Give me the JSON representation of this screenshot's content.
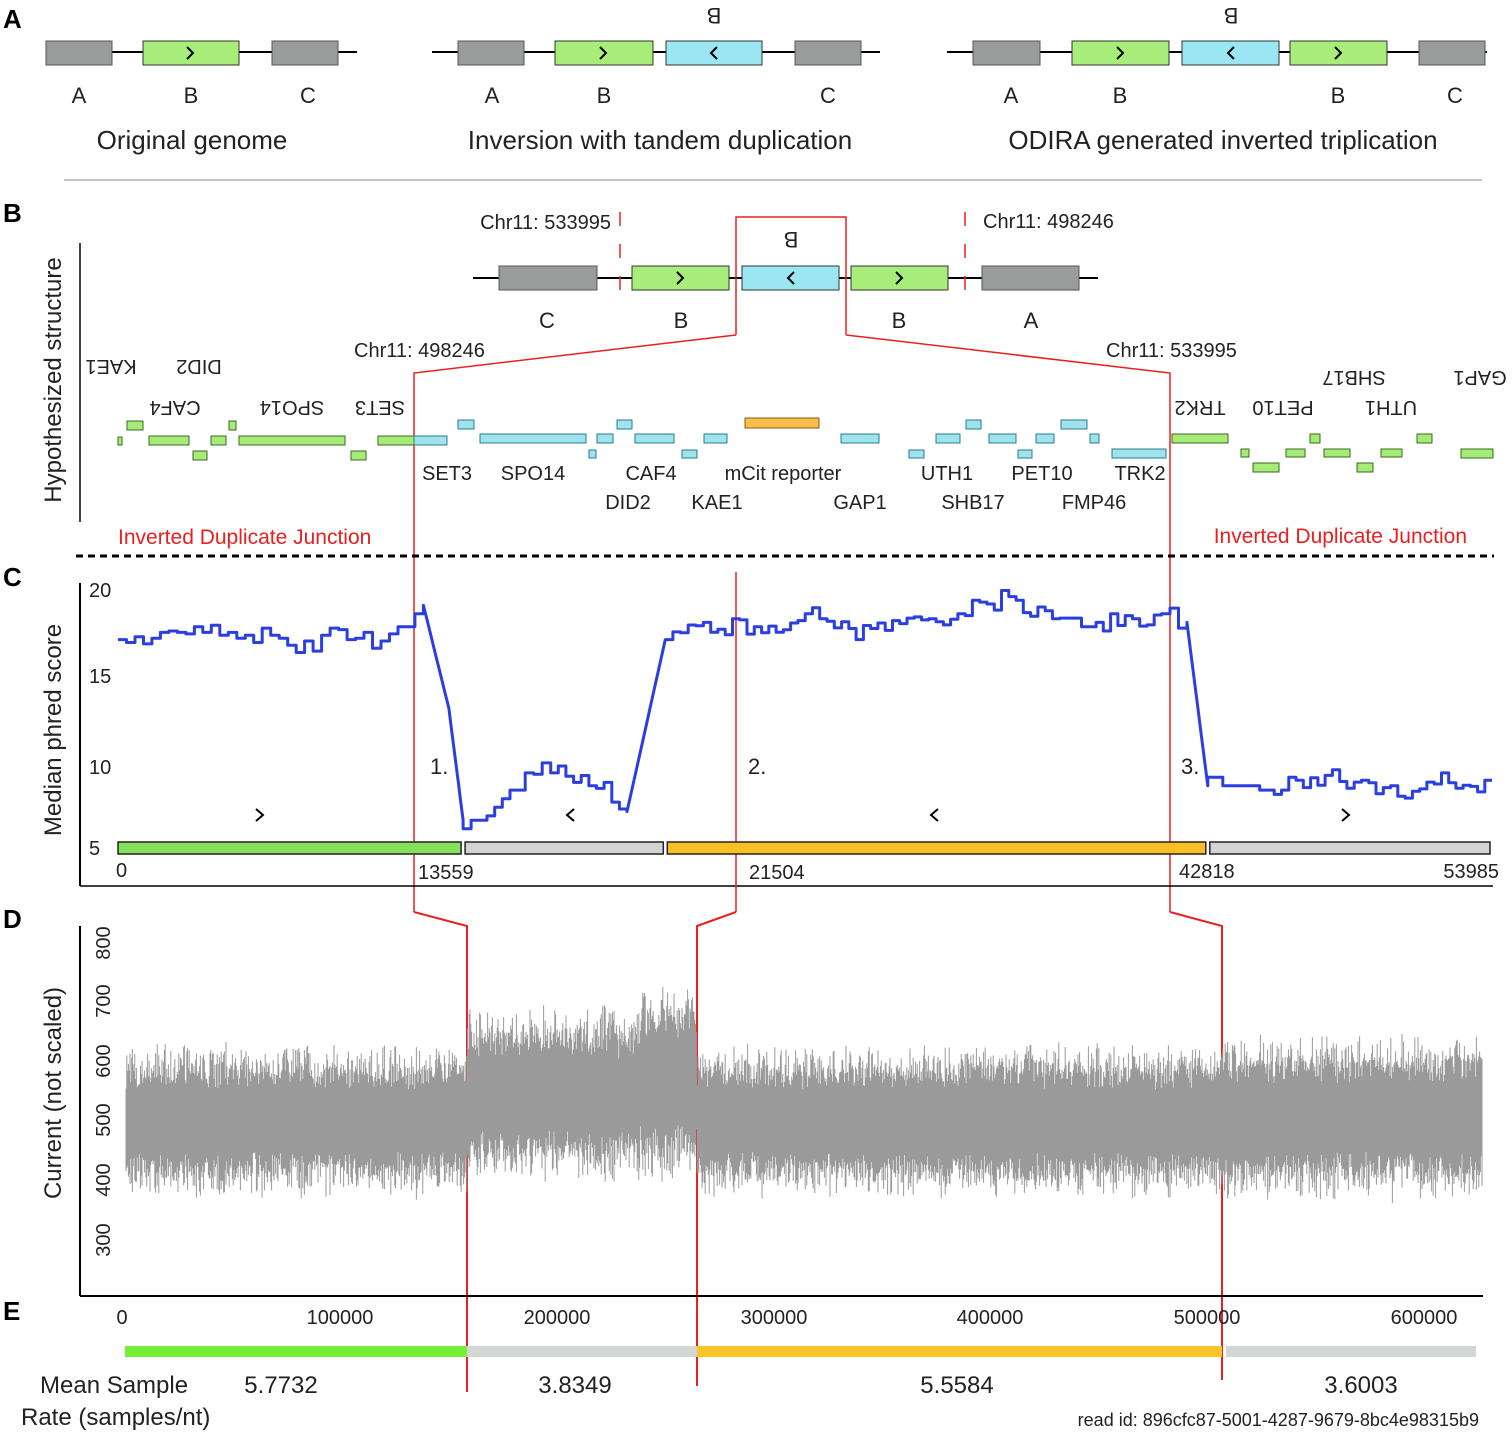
{
  "panel_letters": [
    "A",
    "B",
    "C",
    "D",
    "E"
  ],
  "panel_a": {
    "diagrams": [
      {
        "caption": "Original genome",
        "labels": [
          "A",
          "B",
          "C"
        ],
        "top_label": ""
      },
      {
        "caption": "Inversion with tandem duplication",
        "labels": [
          "A",
          "B",
          "C"
        ],
        "top_label": "B"
      },
      {
        "caption": "ODIRA generated inverted triplication",
        "labels": [
          "A",
          "B",
          "B",
          "C"
        ],
        "top_label": "B"
      }
    ]
  },
  "panel_b": {
    "ylabel": "Hypothesized structure",
    "structure_labels": [
      "C",
      "B",
      "B",
      "A"
    ],
    "structure_top_label": "B",
    "breakpoints": {
      "left_top": "Chr11: 533995",
      "right_top": "Chr11: 498246",
      "left_bottom": "Chr11: 498246",
      "right_bottom": "Chr11: 533995"
    },
    "genes_left_flipped": [
      "KAE1",
      "DID2",
      "CAF4",
      "SPO14",
      "SET3"
    ],
    "genes_middle": [
      "SET3",
      "SPO14",
      "CAF4",
      "DID2",
      "KAE1",
      "mCit reporter",
      "GAP1",
      "UTH1",
      "SHB17",
      "PET10",
      "FMP46",
      "TRK2"
    ],
    "genes_right_flipped": [
      "TRK2",
      "PET10",
      "SHB17",
      "UTH1",
      "GAP1"
    ],
    "junction_label": "Inverted Duplicate Junction"
  },
  "panel_c": {
    "ylabel": "Median phred score",
    "yticks": [
      "20",
      "15",
      "10",
      "5"
    ],
    "region_labels": [
      "1.",
      "2.",
      "3."
    ],
    "segment_ticks": [
      "0",
      "13559",
      "21504",
      "42818",
      "53985"
    ],
    "segment_colors": [
      "#86e05c",
      "#d3d3d3",
      "#fbbf26",
      "#d3d3d3"
    ],
    "line_color": "#2b3ee0"
  },
  "panel_d": {
    "ylabel": "Current (not scaled)",
    "yticks": [
      "800",
      "700",
      "600",
      "500",
      "400",
      "300"
    ],
    "xticks": [
      "0",
      "100000",
      "200000",
      "300000",
      "400000",
      "500000",
      "600000"
    ],
    "signal_color": "#9a9a9a"
  },
  "panel_e": {
    "label_line1": "Mean Sample",
    "label_line2": "Rate (samples/nt)",
    "rates": [
      "5.7732",
      "3.8349",
      "5.5584",
      "3.6003"
    ],
    "bar_colors": [
      "#77ee3a",
      "#d3d6d5",
      "#fbc428",
      "#d3d6d5"
    ],
    "read_id": "read id:  896cfc87-5001-4287-9679-8bc4e98315b9"
  },
  "chart_data": {
    "type": "line",
    "title": "",
    "xlabel": "",
    "ylabel": "Median phred score",
    "ylim": [
      5,
      20
    ],
    "xlim": [
      0,
      53985
    ],
    "x": [
      0,
      1000,
      2000,
      3000,
      4000,
      5000,
      6000,
      7000,
      8000,
      9000,
      10000,
      11000,
      12000,
      13000,
      13559,
      14500,
      16000,
      17000,
      18500,
      20000,
      21504,
      23000,
      25000,
      27000,
      29000,
      31000,
      33000,
      35000,
      37000,
      39000,
      41000,
      42000,
      42818,
      44000,
      46000,
      48000,
      50000,
      52000,
      53985
    ],
    "y": [
      17,
      16.5,
      17.5,
      18,
      17,
      17.5,
      17,
      16.5,
      17,
      17.5,
      17,
      17.5,
      19,
      13,
      6.5,
      6.5,
      9,
      9.5,
      9,
      7,
      17,
      18,
      17.5,
      18.5,
      17.5,
      18,
      18.5,
      19.5,
      18,
      18,
      18.5,
      18,
      8.5,
      8.5,
      8.5,
      9,
      8,
      9,
      8.5
    ],
    "segments": [
      {
        "start": 0,
        "end": 13559
      },
      {
        "start": 13559,
        "end": 21504
      },
      {
        "start": 21504,
        "end": 42818
      },
      {
        "start": 42818,
        "end": 53985
      }
    ]
  }
}
